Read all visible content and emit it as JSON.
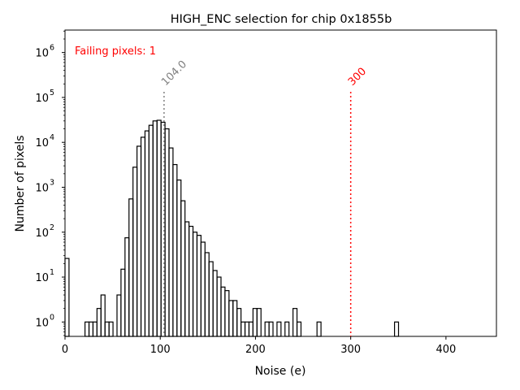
{
  "chart_data": {
    "type": "histogram",
    "title": "HIGH_ENC selection for chip 0x1855b",
    "xlabel": "Noise (e)",
    "ylabel": "Number of pixels",
    "yscale": "log",
    "xlim": [
      0,
      453
    ],
    "ylim_log10": [
      -0.32,
      6.5
    ],
    "x_ticks": [
      0,
      100,
      200,
      300,
      400
    ],
    "y_ticks": [
      {
        "base": "10",
        "exp": "0",
        "log": 0
      },
      {
        "base": "10",
        "exp": "1",
        "log": 1
      },
      {
        "base": "10",
        "exp": "2",
        "log": 2
      },
      {
        "base": "10",
        "exp": "3",
        "log": 3
      },
      {
        "base": "10",
        "exp": "4",
        "log": 4
      },
      {
        "base": "10",
        "exp": "5",
        "log": 5
      },
      {
        "base": "10",
        "exp": "6",
        "log": 6
      }
    ],
    "annotation": {
      "text": "Failing pixels: 1",
      "color": "#ff0000"
    },
    "vlines": [
      {
        "x": 104.0,
        "label": "104.0",
        "color": "#808080"
      },
      {
        "x": 300,
        "label": "300",
        "color": "#ff0000"
      }
    ],
    "bin_width": 4.2,
    "bins": [
      [
        0,
        4.2,
        26
      ],
      [
        4.2,
        8.4,
        0
      ],
      [
        8.4,
        12.6,
        0
      ],
      [
        12.6,
        16.8,
        0
      ],
      [
        16.8,
        21,
        0
      ],
      [
        21,
        25.2,
        1
      ],
      [
        25.2,
        29.4,
        1
      ],
      [
        29.4,
        33.6,
        1
      ],
      [
        33.6,
        37.8,
        2
      ],
      [
        37.8,
        42,
        4
      ],
      [
        42,
        46.2,
        1
      ],
      [
        46.2,
        50.4,
        1
      ],
      [
        50.4,
        54.6,
        0
      ],
      [
        54.6,
        58.8,
        4
      ],
      [
        58.8,
        63,
        15
      ],
      [
        63,
        67.2,
        75
      ],
      [
        67.2,
        71.4,
        550
      ],
      [
        71.4,
        75.6,
        2800
      ],
      [
        75.6,
        79.8,
        8200
      ],
      [
        79.8,
        84,
        13000
      ],
      [
        84,
        88.2,
        18000
      ],
      [
        88.2,
        92.4,
        24000
      ],
      [
        92.4,
        96.6,
        30000
      ],
      [
        96.6,
        100.8,
        31000
      ],
      [
        100.8,
        105,
        28000
      ],
      [
        105,
        109.2,
        20000
      ],
      [
        109.2,
        113.4,
        7500
      ],
      [
        113.4,
        117.6,
        3200
      ],
      [
        117.6,
        121.8,
        1450
      ],
      [
        121.8,
        126,
        500
      ],
      [
        126,
        130.2,
        170
      ],
      [
        130.2,
        134.4,
        135
      ],
      [
        134.4,
        138.6,
        100
      ],
      [
        138.6,
        142.8,
        85
      ],
      [
        142.8,
        147,
        60
      ],
      [
        147,
        151.2,
        35
      ],
      [
        151.2,
        155.4,
        22
      ],
      [
        155.4,
        159.6,
        14
      ],
      [
        159.6,
        163.8,
        10
      ],
      [
        163.8,
        168,
        6
      ],
      [
        168,
        172.2,
        5
      ],
      [
        172.2,
        176.4,
        3
      ],
      [
        176.4,
        180.6,
        3
      ],
      [
        180.6,
        184.8,
        2
      ],
      [
        184.8,
        189,
        1
      ],
      [
        189,
        193.2,
        1
      ],
      [
        193.2,
        197.4,
        1
      ],
      [
        197.4,
        201.6,
        2
      ],
      [
        201.6,
        205.8,
        2
      ],
      [
        205.8,
        210,
        0
      ],
      [
        210,
        214.2,
        1
      ],
      [
        214.2,
        218.4,
        1
      ],
      [
        218.4,
        222.6,
        0
      ],
      [
        222.6,
        226.8,
        1
      ],
      [
        226.8,
        231,
        0
      ],
      [
        231,
        235.2,
        1
      ],
      [
        235.2,
        239.4,
        0
      ],
      [
        239.4,
        243.6,
        2
      ],
      [
        243.6,
        247.8,
        1
      ],
      [
        247.8,
        252,
        0
      ],
      [
        252,
        256.2,
        0
      ],
      [
        256.2,
        260.4,
        0
      ],
      [
        260.4,
        264.6,
        0
      ],
      [
        264.6,
        268.8,
        1
      ],
      [
        268.8,
        273,
        0
      ],
      [
        346,
        350.2,
        1
      ]
    ]
  }
}
